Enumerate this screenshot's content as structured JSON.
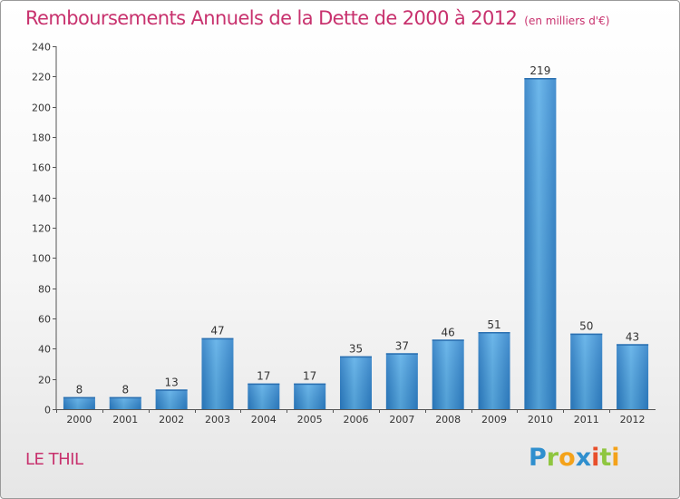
{
  "chart_data": {
    "type": "bar",
    "title": "Remboursements Annuels de la Dette de 2000 à 2012",
    "subtitle": "(en milliers d'€)",
    "categories": [
      "2000",
      "2001",
      "2002",
      "2003",
      "2004",
      "2005",
      "2006",
      "2007",
      "2008",
      "2009",
      "2010",
      "2011",
      "2012"
    ],
    "values": [
      8,
      8,
      13,
      47,
      17,
      17,
      35,
      37,
      46,
      51,
      219,
      50,
      43
    ],
    "ylim": [
      0,
      240
    ],
    "yticks": [
      0,
      20,
      40,
      60,
      80,
      100,
      120,
      140,
      160,
      180,
      200,
      220,
      240
    ],
    "grid": false,
    "bar_color": "#3d8fd4"
  },
  "footer": {
    "town": "LE THIL",
    "logo_letters": [
      {
        "ch": "P",
        "color": "#2f8fce"
      },
      {
        "ch": "r",
        "color": "#8fc640"
      },
      {
        "ch": "o",
        "color": "#f4a21a"
      },
      {
        "ch": "x",
        "color": "#2f8fce"
      },
      {
        "ch": "i",
        "color": "#e84f2b"
      },
      {
        "ch": "t",
        "color": "#8fc640"
      },
      {
        "ch": "i",
        "color": "#f4a21a"
      }
    ]
  }
}
